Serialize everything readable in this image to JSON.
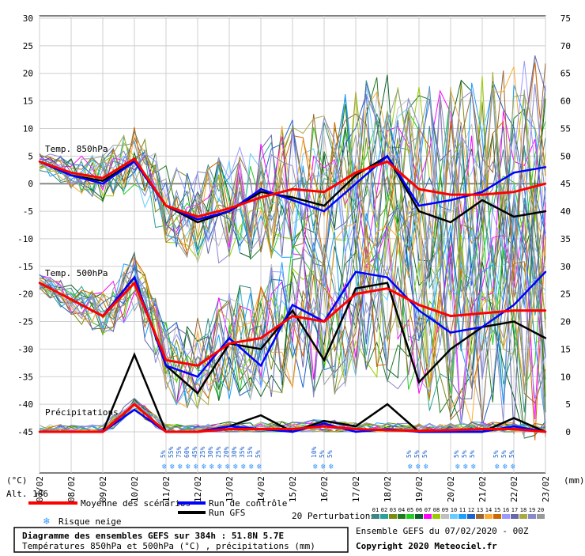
{
  "chart_data": [
    {
      "type": "line",
      "title": "Temp. 850hPa",
      "ylabel": "(°C)",
      "yticks": [
        10,
        5,
        0,
        -5,
        -10
      ],
      "x": [
        "07/02",
        "08/02",
        "09/02",
        "10/02",
        "11/02",
        "12/02",
        "13/02",
        "14/02",
        "15/02",
        "16/02",
        "17/02",
        "18/02",
        "19/02",
        "20/02",
        "21/02",
        "22/02",
        "23/02"
      ],
      "series": [
        {
          "name": "Moyenne des scénarios",
          "color": "#ff0000",
          "values": [
            4,
            2,
            1,
            4.5,
            -4,
            -6,
            -4.5,
            -2.5,
            -1,
            -1.5,
            2,
            4,
            -1,
            -2,
            -2,
            -1.5,
            0
          ]
        },
        {
          "name": "Run de contrôle",
          "color": "#0000ff",
          "values": [
            4,
            1.5,
            0,
            4,
            -4,
            -6.5,
            -5,
            -1,
            -3,
            -5,
            0,
            5,
            -4,
            -3,
            -1.5,
            2,
            3
          ]
        },
        {
          "name": "Run GFS",
          "color": "#000000",
          "values": [
            4,
            1.5,
            0.5,
            4,
            -4,
            -7,
            -5,
            -1.5,
            -2.5,
            -4,
            1.5,
            5,
            -5,
            -7,
            -3,
            -6,
            -5
          ]
        }
      ]
    },
    {
      "type": "line",
      "title": "Temp. 500hPa",
      "yticks": [
        -15,
        -20,
        -25,
        -30,
        -35,
        -40,
        -45
      ],
      "x": [
        "07/02",
        "08/02",
        "09/02",
        "10/02",
        "11/02",
        "12/02",
        "13/02",
        "14/02",
        "15/02",
        "16/02",
        "17/02",
        "18/02",
        "19/02",
        "20/02",
        "21/02",
        "22/02",
        "23/02"
      ],
      "series": [
        {
          "name": "Moyenne des scénarios",
          "color": "#ff0000",
          "values": [
            -18,
            -21,
            -24,
            -18,
            -32,
            -33,
            -29,
            -28,
            -24,
            -25,
            -20,
            -19,
            -22,
            -24,
            -23.5,
            -23,
            -23
          ]
        },
        {
          "name": "Run de contrôle",
          "color": "#0000ff",
          "values": [
            -18,
            -21,
            -24,
            -17,
            -33,
            -35,
            -28,
            -33,
            -22,
            -25,
            -16,
            -17,
            -23,
            -27,
            -26,
            -22,
            -16
          ]
        },
        {
          "name": "Run GFS",
          "color": "#000000",
          "values": [
            -18,
            -21,
            -24,
            -17,
            -33,
            -38,
            -29,
            -30,
            -23,
            -32,
            -19,
            -18,
            -36,
            -30,
            -26,
            -25,
            -28
          ]
        }
      ]
    },
    {
      "type": "line",
      "title": "Précipitations",
      "ylabel": "(mm)",
      "yticks_right": [
        75,
        70,
        65,
        60,
        55,
        50,
        45,
        40,
        35,
        30,
        25,
        20,
        15,
        10,
        5,
        0
      ],
      "x": [
        "07/02",
        "08/02",
        "09/02",
        "10/02",
        "11/02",
        "12/02",
        "13/02",
        "14/02",
        "15/02",
        "16/02",
        "17/02",
        "18/02",
        "19/02",
        "20/02",
        "21/02",
        "22/02",
        "23/02"
      ],
      "series": [
        {
          "name": "Moyenne des scénarios",
          "color": "#ff0000",
          "values": [
            0,
            0,
            0,
            5,
            0,
            0,
            0.5,
            0.5,
            0.5,
            1,
            0.5,
            0.3,
            0.2,
            0.3,
            0.5,
            0.5,
            0
          ]
        },
        {
          "name": "Run de contrôle",
          "color": "#0000ff",
          "values": [
            0,
            0,
            0,
            4,
            0,
            0,
            1,
            0.5,
            0,
            1.5,
            0,
            0.5,
            0,
            0,
            0,
            1,
            0
          ]
        },
        {
          "name": "Run GFS",
          "color": "#000000",
          "values": [
            0,
            0,
            0,
            14,
            0,
            0,
            1,
            3,
            0,
            2,
            1,
            5,
            0,
            0,
            0,
            2.5,
            0
          ]
        }
      ]
    }
  ],
  "snow_risk": {
    "groups": [
      {
        "labels": [
          "5%",
          "55%",
          "75%",
          "60%",
          "45%",
          "25%",
          "30%",
          "25%",
          "20%",
          "30%",
          "35%",
          "15%",
          "5%"
        ]
      },
      {
        "labels": [
          "10%",
          "5%",
          "5%"
        ]
      },
      {
        "labels": [
          "5%",
          "5%",
          "5%"
        ]
      },
      {
        "labels": [
          "5%",
          "5%",
          "5%"
        ]
      },
      {
        "labels": [
          "5%",
          "5%",
          "5%"
        ]
      }
    ]
  },
  "axis": {
    "left_unit": "(°C)",
    "right_unit": "(mm)",
    "alt": "Alt. 186"
  },
  "legend": {
    "mean": "Moyenne des scénarios",
    "control": "Run de contrôle",
    "gfs": "Run GFS",
    "snow": "Risque neige",
    "perturbations_label": "20 Perturbations",
    "perturbation_numbers": [
      "01",
      "02",
      "03",
      "04",
      "05",
      "06",
      "07",
      "08",
      "09",
      "10",
      "11",
      "12",
      "13",
      "14",
      "15",
      "16",
      "17",
      "18",
      "19",
      "20"
    ],
    "perturbation_colors": [
      "#3b8686",
      "#2aa198",
      "#7b8b10",
      "#1f7a1f",
      "#22cc22",
      "#0a5f2a",
      "#ff00ff",
      "#99cc00",
      "#c0c0c0",
      "#66ccff",
      "#1a9fff",
      "#1e5fcc",
      "#996633",
      "#ffaa33",
      "#cc6600",
      "#9999ff",
      "#6666aa",
      "#aaaa44",
      "#8888cc",
      "#999999"
    ]
  },
  "footer": {
    "title": "Diagramme des ensembles GEFS sur 384h : 51.8N 5.7E",
    "subtitle": "Températures 850hPa et 500hPa (°C) , précipitations (mm)",
    "run": "Ensemble GEFS du 07/02/2020 - 00Z",
    "copyright": "Copyright 2020 Meteociel.fr"
  }
}
